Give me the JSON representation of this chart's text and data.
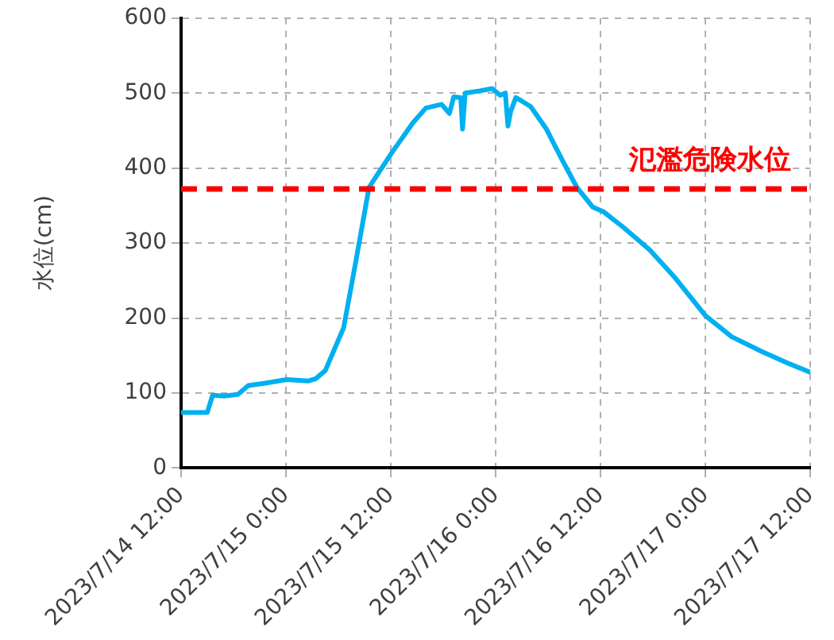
{
  "chart_data": {
    "type": "line",
    "ylabel": "水位(cm)",
    "x": [
      "2023-07-14T12:00",
      "2023-07-14T15:00",
      "2023-07-14T15:36",
      "2023-07-14T16:54",
      "2023-07-14T18:30",
      "2023-07-14T19:42",
      "2023-07-14T21:30",
      "2023-07-15T00:06",
      "2023-07-15T02:30",
      "2023-07-15T03:24",
      "2023-07-15T04:30",
      "2023-07-15T06:36",
      "2023-07-15T08:00",
      "2023-07-15T09:30",
      "2023-07-15T10:06",
      "2023-07-15T12:12",
      "2023-07-15T14:30",
      "2023-07-15T16:00",
      "2023-07-15T17:48",
      "2023-07-15T18:42",
      "2023-07-15T19:12",
      "2023-07-15T20:00",
      "2023-07-15T20:12",
      "2023-07-15T20:30",
      "2023-07-15T22:12",
      "2023-07-15T23:36",
      "2023-07-16T00:30",
      "2023-07-16T01:06",
      "2023-07-16T01:24",
      "2023-07-16T01:42",
      "2023-07-16T02:18",
      "2023-07-16T02:54",
      "2023-07-16T04:00",
      "2023-07-16T05:48",
      "2023-07-16T07:36",
      "2023-07-16T09:18",
      "2023-07-16T11:06",
      "2023-07-16T12:18",
      "2023-07-16T14:36",
      "2023-07-16T17:36",
      "2023-07-16T20:30",
      "2023-07-17T00:00",
      "2023-07-17T03:00",
      "2023-07-17T06:30",
      "2023-07-17T09:24",
      "2023-07-17T11:54"
    ],
    "series": [
      {
        "color": "#00b0f0",
        "values": [
          74,
          74,
          97,
          96,
          98,
          110,
          113,
          118,
          116,
          119,
          130,
          187,
          276,
          374,
          385,
          422,
          460,
          480,
          485,
          473,
          495,
          494,
          452,
          500,
          503,
          506,
          497,
          500,
          456,
          475,
          494,
          490,
          482,
          452,
          411,
          374,
          348,
          342,
          321,
          291,
          254,
          203,
          175,
          155,
          140,
          128
        ]
      }
    ],
    "xlim": [
      "2023-07-14T12:00",
      "2023-07-17T12:00"
    ],
    "xticks": [
      {
        "value": "2023-07-14T12:00",
        "label": "2023/7/14 12:00"
      },
      {
        "value": "2023-07-15T00:00",
        "label": "2023/7/15 0:00"
      },
      {
        "value": "2023-07-15T12:00",
        "label": "2023/7/15 12:00"
      },
      {
        "value": "2023-07-16T00:00",
        "label": "2023/7/16 0:00"
      },
      {
        "value": "2023-07-16T12:00",
        "label": "2023/7/16 12:00"
      },
      {
        "value": "2023-07-17T00:00",
        "label": "2023/7/17 0:00"
      },
      {
        "value": "2023-07-17T12:00",
        "label": "2023/7/17 12:00"
      }
    ],
    "ylim": [
      0,
      600
    ],
    "yticks": [
      0,
      100,
      200,
      300,
      400,
      500,
      600
    ],
    "ref_lines": [
      {
        "axis": "y",
        "value": 372,
        "label": "氾濫危険水位",
        "color": "#ff0000",
        "line_style": "dashed"
      }
    ],
    "grid": true,
    "legend": false,
    "marker": "none",
    "line_style": "solid"
  }
}
